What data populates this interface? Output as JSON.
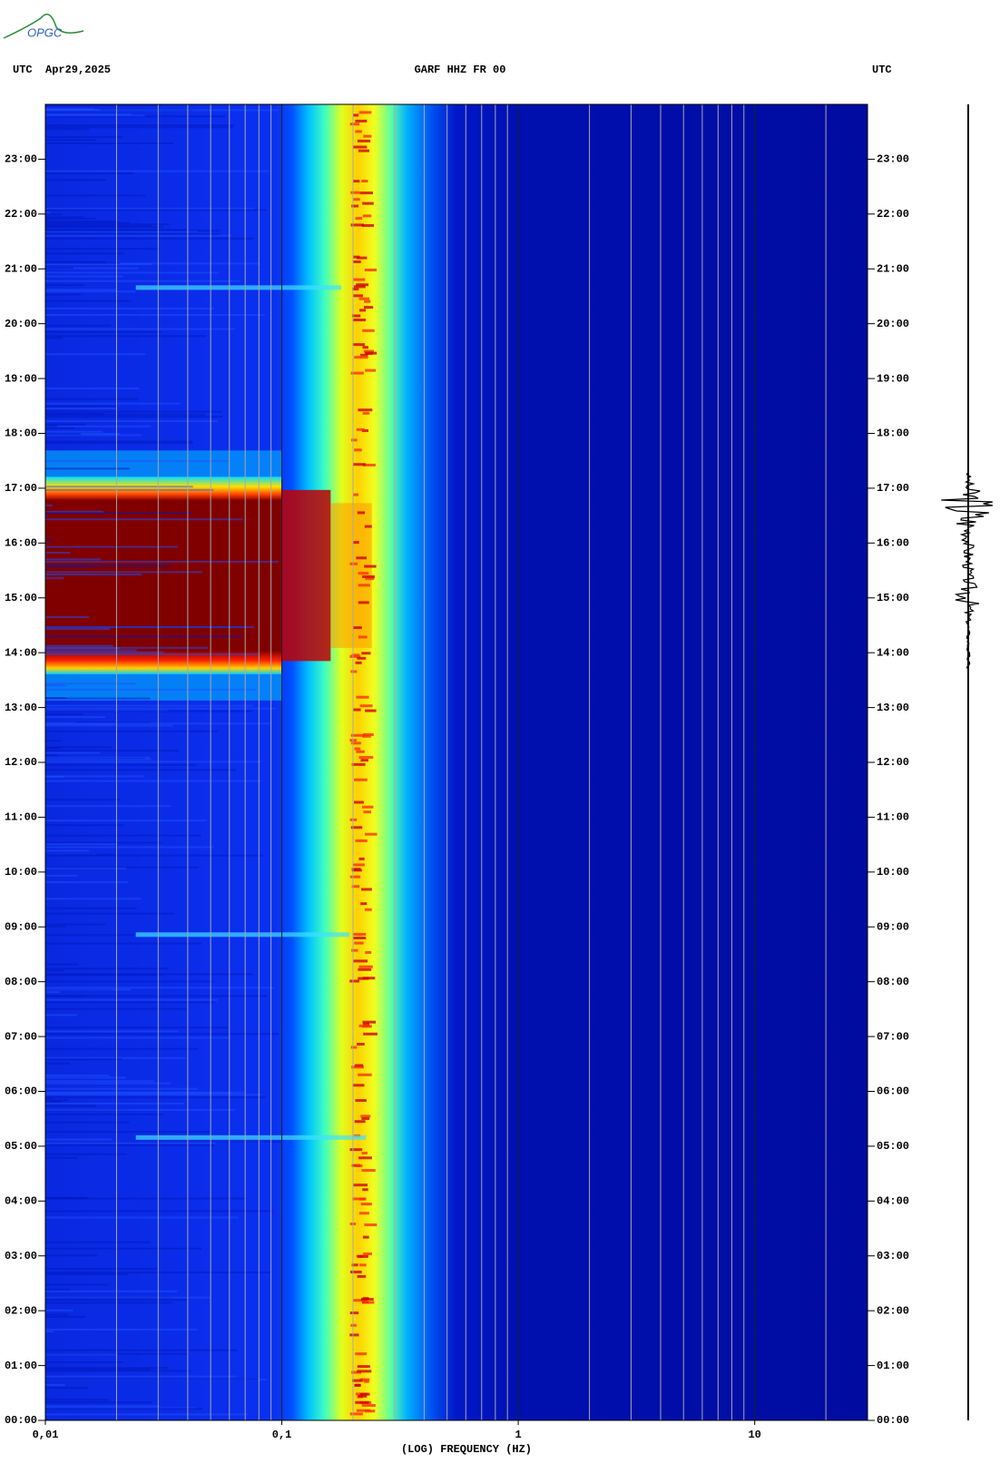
{
  "logo": "OPGC",
  "chart_data": {
    "type": "spectrogram",
    "title": "GARF HHZ FR 00",
    "date": "Apr29,2025",
    "timezone_left": "UTC",
    "timezone_right": "UTC",
    "xlabel": "(LOG) FREQUENCY (HZ)",
    "xlog": true,
    "xlim": [
      0.01,
      30
    ],
    "xticks": [
      {
        "value": 0.01,
        "label": "0,01"
      },
      {
        "value": 0.1,
        "label": "0,1"
      },
      1,
      10
    ],
    "xminorticks": [
      0.02,
      0.03,
      0.04,
      0.05,
      0.06,
      0.07,
      0.08,
      0.09,
      0.2,
      0.3,
      0.4,
      0.5,
      0.6,
      0.7,
      0.8,
      0.9,
      2,
      3,
      4,
      5,
      6,
      7,
      8,
      9,
      20
    ],
    "grid": true,
    "ylim": [
      0,
      24
    ],
    "yticks": [
      {
        "value": 0,
        "label": "00:00"
      },
      {
        "value": 1,
        "label": "01:00"
      },
      {
        "value": 2,
        "label": "02:00"
      },
      {
        "value": 3,
        "label": "03:00"
      },
      {
        "value": 4,
        "label": "04:00"
      },
      {
        "value": 5,
        "label": "05:00"
      },
      {
        "value": 6,
        "label": "06:00"
      },
      {
        "value": 7,
        "label": "07:00"
      },
      {
        "value": 8,
        "label": "08:00"
      },
      {
        "value": 9,
        "label": "09:00"
      },
      {
        "value": 10,
        "label": "10:00"
      },
      {
        "value": 11,
        "label": "11:00"
      },
      {
        "value": 12,
        "label": "12:00"
      },
      {
        "value": 13,
        "label": "13:00"
      },
      {
        "value": 14,
        "label": "14:00"
      },
      {
        "value": 15,
        "label": "15:00"
      },
      {
        "value": 16,
        "label": "16:00"
      },
      {
        "value": 17,
        "label": "17:00"
      },
      {
        "value": 18,
        "label": "18:00"
      },
      {
        "value": 19,
        "label": "19:00"
      },
      {
        "value": 20,
        "label": "20:00"
      },
      {
        "value": 21,
        "label": "21:00"
      },
      {
        "value": 22,
        "label": "22:00"
      },
      {
        "value": 23,
        "label": "23:00"
      }
    ]
  }
}
